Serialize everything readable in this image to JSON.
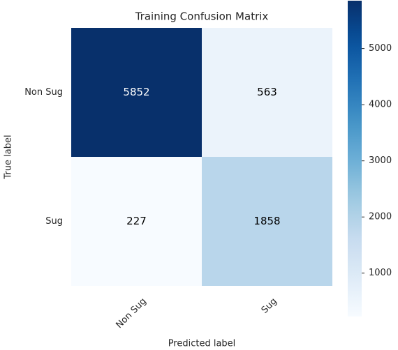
{
  "chart_data": {
    "type": "heatmap",
    "title": "Training Confusion Matrix",
    "x_label": "Predicted label",
    "y_label": "True label",
    "x_categories": [
      "Non Sug",
      "Sug"
    ],
    "y_categories": [
      "Non Sug",
      "Sug"
    ],
    "values": [
      [
        5852,
        563
      ],
      [
        227,
        1858
      ]
    ],
    "colormap": "Blues",
    "clim": [
      227,
      5852
    ],
    "cticks": [
      1000,
      2000,
      3000,
      4000,
      5000
    ]
  }
}
